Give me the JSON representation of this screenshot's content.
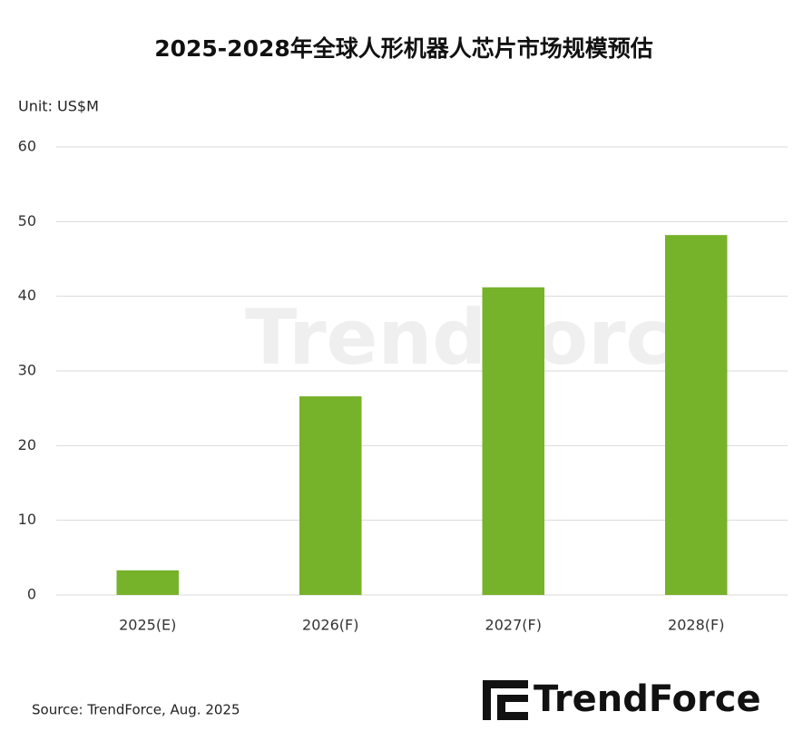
{
  "chart_data": {
    "type": "bar",
    "title": "2025-2028年全球人形机器人芯片市场规模预估",
    "unit_label": "Unit: US$M",
    "source": "Source: TrendForce, Aug. 2025",
    "watermark": "TrendForce",
    "logo": "TrendForce",
    "categories": [
      "2025(E)",
      "2026(F)",
      "2027(F)",
      "2028(F)"
    ],
    "values": [
      3.3,
      26.6,
      41.2,
      48.2
    ],
    "color": "#77b22b",
    "ylim": [
      0,
      60
    ],
    "yticks": [
      0,
      10,
      20,
      30,
      40,
      50,
      60
    ],
    "grid": true
  }
}
